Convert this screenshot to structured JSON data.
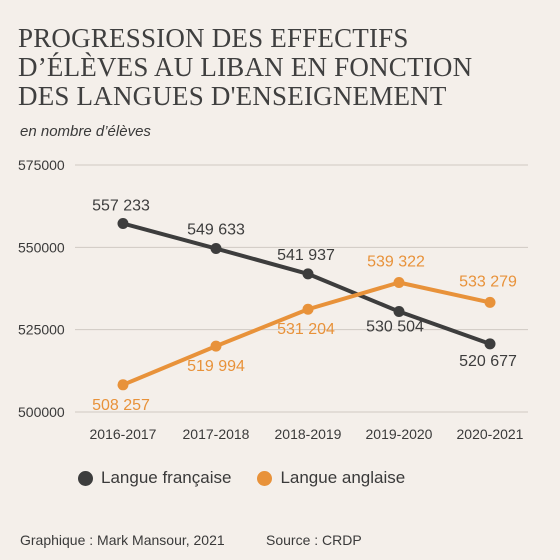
{
  "title_lines": [
    "PROGRESSION DES EFFECTIFS",
    "D’ÉLÈVES AU LIBAN EN FONCTION",
    "DES LANGUES D'ENSEIGNEMENT"
  ],
  "subtitle": "en nombre d’élèves",
  "credit": "Graphique : Mark Mansour, 2021",
  "source": "Source : CRDP",
  "colors": {
    "french": "#3d3d3d",
    "english": "#e8923a",
    "grid": "#cfc9c3",
    "text": "#3a3a3a"
  },
  "chart_data": {
    "type": "line",
    "categories": [
      "2016-2017",
      "2017-2018",
      "2018-2019",
      "2019-2020",
      "2020-2021"
    ],
    "ylim": [
      500000,
      575000
    ],
    "yticks": [
      500000,
      525000,
      550000,
      575000
    ],
    "ytick_labels": [
      "500000",
      "525000",
      "550000",
      "575000"
    ],
    "grid": true,
    "legend": "bottom",
    "series": [
      {
        "name": "Langue française",
        "key": "french",
        "values": [
          557233,
          549633,
          541937,
          530504,
          520677
        ],
        "labels": [
          "557 233",
          "549 633",
          "541 937",
          "530 504",
          "520 677"
        ]
      },
      {
        "name": "Langue anglaise",
        "key": "english",
        "values": [
          508257,
          519994,
          531204,
          539322,
          533279
        ],
        "labels": [
          "508 257",
          "519 994",
          "531 204",
          "539 322",
          "533 279"
        ]
      }
    ]
  }
}
